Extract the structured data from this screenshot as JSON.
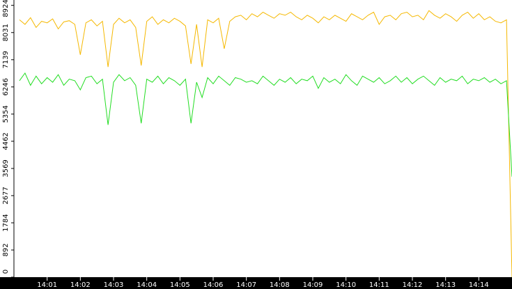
{
  "chart_data": {
    "type": "line",
    "x": [
      "14:00:10",
      "14:00:20",
      "14:00:30",
      "14:00:40",
      "14:00:50",
      "14:01:00",
      "14:01:10",
      "14:01:20",
      "14:01:30",
      "14:01:40",
      "14:01:50",
      "14:02:00",
      "14:02:10",
      "14:02:20",
      "14:02:30",
      "14:02:40",
      "14:02:50",
      "14:03:00",
      "14:03:10",
      "14:03:20",
      "14:03:30",
      "14:03:40",
      "14:03:50",
      "14:04:00",
      "14:04:10",
      "14:04:20",
      "14:04:30",
      "14:04:40",
      "14:04:50",
      "14:05:00",
      "14:05:10",
      "14:05:20",
      "14:05:30",
      "14:05:40",
      "14:05:50",
      "14:06:00",
      "14:06:10",
      "14:06:20",
      "14:06:30",
      "14:06:40",
      "14:06:50",
      "14:07:00",
      "14:07:10",
      "14:07:20",
      "14:07:30",
      "14:07:40",
      "14:07:50",
      "14:08:00",
      "14:08:10",
      "14:08:20",
      "14:08:30",
      "14:08:40",
      "14:08:50",
      "14:09:00",
      "14:09:10",
      "14:09:20",
      "14:09:30",
      "14:09:40",
      "14:09:50",
      "14:10:00",
      "14:10:10",
      "14:10:20",
      "14:10:30",
      "14:10:40",
      "14:10:50",
      "14:11:00",
      "14:11:10",
      "14:11:20",
      "14:11:30",
      "14:11:40",
      "14:11:50",
      "14:12:00",
      "14:12:10",
      "14:12:20",
      "14:12:30",
      "14:12:40",
      "14:12:50",
      "14:13:00",
      "14:13:10",
      "14:13:20",
      "14:13:30",
      "14:13:40",
      "14:13:50",
      "14:14:00",
      "14:14:10",
      "14:14:20",
      "14:14:30",
      "14:14:40",
      "14:14:50",
      "14:15:00"
    ],
    "series": [
      {
        "color": "#f5b800",
        "values": [
          8450,
          8300,
          8520,
          8200,
          8400,
          8350,
          8480,
          8150,
          8380,
          8420,
          8300,
          7300,
          8350,
          8450,
          8250,
          8400,
          6900,
          8300,
          8500,
          8350,
          8450,
          8200,
          6950,
          8400,
          8550,
          8300,
          8450,
          8350,
          8500,
          8400,
          8250,
          7000,
          8300,
          6900,
          8450,
          8350,
          8500,
          7500,
          8400,
          8550,
          8600,
          8450,
          8650,
          8550,
          8700,
          8600,
          8500,
          8650,
          8600,
          8700,
          8550,
          8450,
          8600,
          8500,
          8350,
          8550,
          8450,
          8600,
          8500,
          8400,
          8650,
          8550,
          8450,
          8600,
          8700,
          8300,
          8550,
          8600,
          8450,
          8650,
          8700,
          8550,
          8600,
          8450,
          8750,
          8600,
          8500,
          8650,
          8550,
          8400,
          8600,
          8700,
          8500,
          8650,
          8450,
          8550,
          8400,
          8350,
          8450,
          0
        ]
      },
      {
        "color": "#22dd22",
        "values": [
          6450,
          6700,
          6300,
          6600,
          6350,
          6550,
          6400,
          6650,
          6300,
          6500,
          6450,
          6150,
          6550,
          6600,
          6350,
          6500,
          5000,
          6400,
          6650,
          6450,
          6550,
          6300,
          5050,
          6500,
          6400,
          6600,
          6350,
          6550,
          6450,
          6300,
          6500,
          5050,
          6400,
          5900,
          6550,
          6350,
          6600,
          6450,
          6300,
          6550,
          6500,
          6400,
          6450,
          6350,
          6600,
          6450,
          6300,
          6500,
          6400,
          6550,
          6350,
          6500,
          6450,
          6600,
          6200,
          6550,
          6400,
          6500,
          6350,
          6650,
          6450,
          6300,
          6600,
          6500,
          6400,
          6550,
          6350,
          6450,
          6600,
          6400,
          6550,
          6350,
          6500,
          6600,
          6450,
          6300,
          6550,
          6400,
          6500,
          6450,
          6600,
          6350,
          6500,
          6450,
          6550,
          6400,
          6500,
          6350,
          6450,
          3300
        ]
      }
    ],
    "xlim": [
      "14:00:00",
      "14:15:00"
    ],
    "xticks": [
      "14:01",
      "14:02",
      "14:03",
      "14:04",
      "14:05",
      "14:06",
      "14:07",
      "14:08",
      "14:09",
      "14:10",
      "14:11",
      "14:12",
      "14:13",
      "14:14"
    ],
    "ylim": [
      0,
      9100
    ],
    "yticks": [
      0,
      892,
      1784,
      2677,
      3569,
      4462,
      5354,
      6246,
      7139,
      8031,
      8924
    ]
  }
}
